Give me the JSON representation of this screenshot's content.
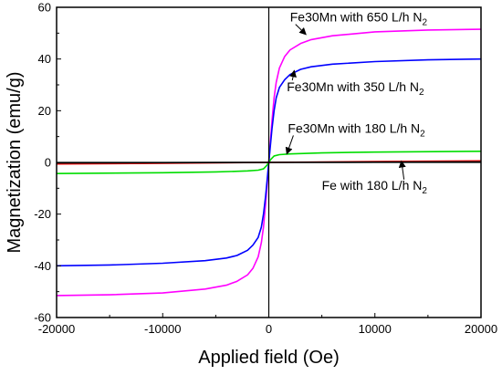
{
  "chart_data": {
    "type": "line",
    "title": "",
    "xlabel": "Applied field (Oe)",
    "ylabel": "Magnetization (emu/g)",
    "xlim": [
      -20000,
      20000
    ],
    "ylim": [
      -60,
      60
    ],
    "xticks": [
      -20000,
      -10000,
      0,
      10000,
      20000
    ],
    "xtick_labels": [
      "-20000",
      "-10000",
      "0",
      "10000",
      "20000"
    ],
    "yticks": [
      -60,
      -40,
      -20,
      0,
      20,
      40,
      60
    ],
    "ytick_labels": [
      "-60",
      "-40",
      "-20",
      "0",
      "20",
      "40",
      "60"
    ],
    "grid": false,
    "legend": "none",
    "series": [
      {
        "color": "#ff00ff",
        "x": [
          -20000,
          -15000,
          -10000,
          -6000,
          -4000,
          -3000,
          -2000,
          -1500,
          -1000,
          -700,
          -500,
          -300,
          -150,
          0,
          150,
          300,
          500,
          700,
          1000,
          1500,
          2000,
          3000,
          4000,
          6000,
          10000,
          15000,
          20000
        ],
        "y": [
          -51.5,
          -51.2,
          -50.5,
          -49.0,
          -47.5,
          -46.0,
          -43.5,
          -41.0,
          -36.5,
          -31.0,
          -25.0,
          -16.0,
          -8.0,
          0,
          8.0,
          16.0,
          25.0,
          31.0,
          36.5,
          41.0,
          43.5,
          46.0,
          47.5,
          49.0,
          50.5,
          51.2,
          51.5
        ]
      },
      {
        "color": "#0000ff",
        "x": [
          -20000,
          -15000,
          -10000,
          -6000,
          -4000,
          -3000,
          -2000,
          -1500,
          -1000,
          -700,
          -500,
          -300,
          -150,
          0,
          150,
          300,
          500,
          700,
          1000,
          1500,
          2000,
          3000,
          4000,
          6000,
          10000,
          15000,
          20000
        ],
        "y": [
          -40.0,
          -39.7,
          -39.0,
          -38.0,
          -37.0,
          -36.0,
          -34.0,
          -32.0,
          -29.0,
          -25.0,
          -20.0,
          -13.0,
          -6.5,
          0,
          6.5,
          13.0,
          20.0,
          25.0,
          29.0,
          32.0,
          34.0,
          36.0,
          37.0,
          38.0,
          39.0,
          39.7,
          40.0
        ]
      },
      {
        "color": "#00dd00",
        "x": [
          -20000,
          -10000,
          -5000,
          -2000,
          -1000,
          -500,
          -200,
          0,
          200,
          500,
          1000,
          2000,
          5000,
          10000,
          20000
        ],
        "y": [
          -4.3,
          -4.0,
          -3.7,
          -3.3,
          -3.0,
          -2.5,
          -1.2,
          0,
          1.2,
          2.5,
          3.0,
          3.3,
          3.7,
          4.0,
          4.3
        ]
      },
      {
        "color": "#ff0000",
        "x": [
          -20000,
          -10000,
          0,
          10000,
          20000
        ],
        "y": [
          -0.6,
          -0.35,
          0,
          0.35,
          0.6
        ]
      },
      {
        "color": "#000000",
        "x": [
          -20000,
          -10000,
          0,
          10000,
          20000
        ],
        "y": [
          -0.2,
          -0.1,
          0,
          0.1,
          0.2
        ]
      }
    ],
    "annotations": [
      {
        "label": "Fe30Mn with 650 L/h",
        "sub": "2",
        "arrow_to": [
          3500,
          49.5
        ],
        "text_at": [
          2000,
          54.5
        ]
      },
      {
        "label": "Fe30Mn with 350 L/h",
        "sub": "2",
        "arrow_to": [
          2400,
          35.5
        ],
        "text_at": [
          1700,
          27.5
        ]
      },
      {
        "label": "Fe30Mn with 180 L/h",
        "sub": "2",
        "arrow_to": [
          1700,
          3.3
        ],
        "text_at": [
          1800,
          11.5
        ]
      },
      {
        "label": "Fe with 180 L/h",
        "sub": "2",
        "arrow_to": [
          12500,
          0.5
        ],
        "text_at": [
          5000,
          -10.5
        ]
      }
    ]
  },
  "annotation_prefix": "N"
}
